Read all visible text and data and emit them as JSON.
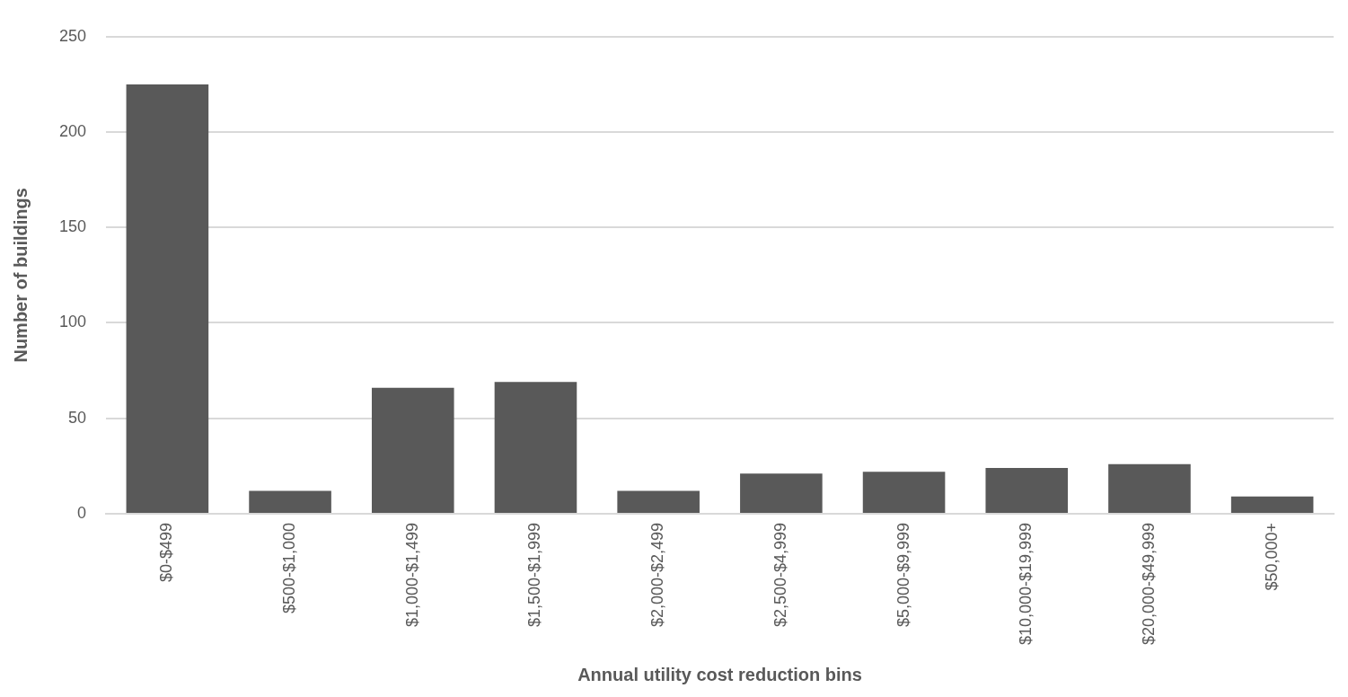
{
  "chart_data": {
    "type": "bar",
    "xlabel": "Annual utility cost reduction bins",
    "ylabel": "Number of buildings",
    "categories": [
      "$0-$499",
      "$500-$1,000",
      "$1,000-$1,499",
      "$1,500-$1,999",
      "$2,000-$2,499",
      "$2,500-$4,999",
      "$5,000-$9,999",
      "$10,000-$19,999",
      "$20,000-$49,999",
      "$50,000+"
    ],
    "values": [
      225,
      12,
      66,
      69,
      12,
      21,
      22,
      24,
      26,
      9
    ],
    "color": "#595959",
    "ylim": [
      0,
      250
    ],
    "yticks": [
      0,
      50,
      100,
      150,
      200,
      250
    ],
    "grid": "y",
    "legend": false
  }
}
